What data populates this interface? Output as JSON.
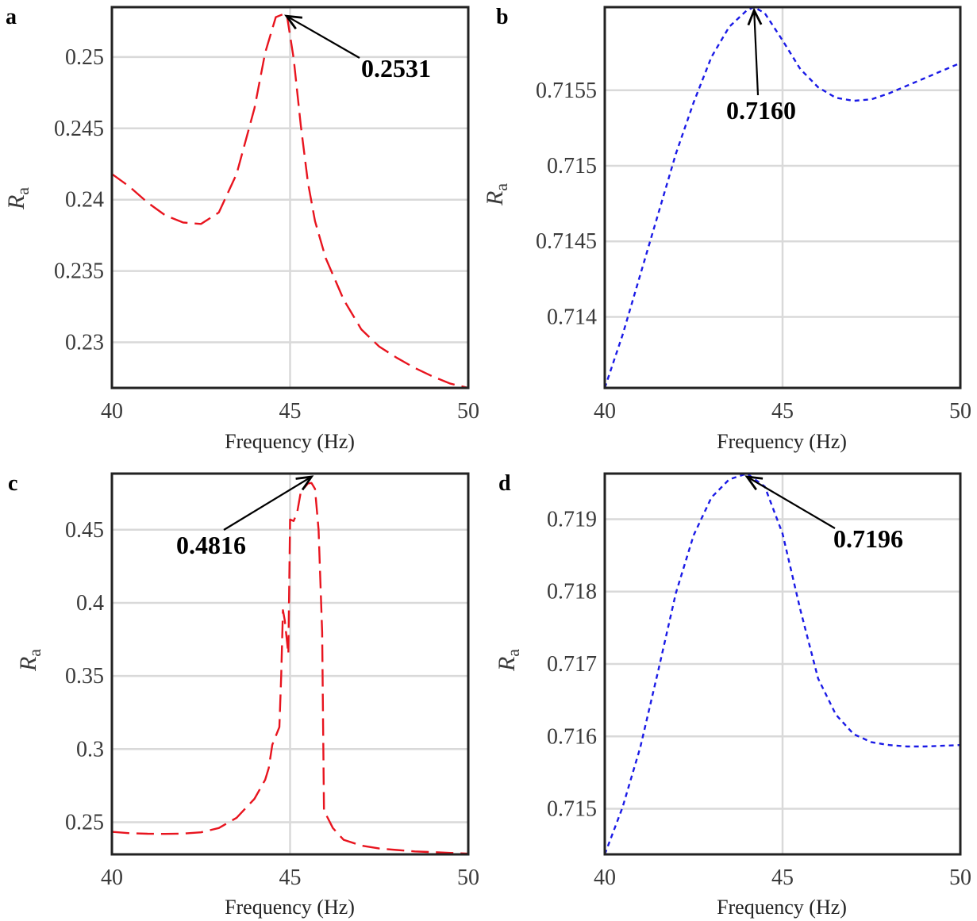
{
  "chart_data": [
    {
      "panel": "a",
      "type": "line",
      "xlabel": "Frequency (Hz)",
      "ylabel": "R",
      "ylabel_sub": "a",
      "xlim": [
        40,
        50
      ],
      "ylim": [
        0.2268,
        0.2535
      ],
      "xticks": [
        40,
        45,
        50
      ],
      "xtick_labels": [
        "40",
        "45",
        "50"
      ],
      "yticks": [
        0.23,
        0.235,
        0.24,
        0.245,
        0.25
      ],
      "ytick_labels": [
        "0.23",
        "0.235",
        "0.24",
        "0.245",
        "0.25"
      ],
      "grid": true,
      "series": [
        {
          "color": "#e8141e",
          "dash": "long-dash",
          "x": [
            40,
            40.5,
            41,
            41.5,
            42,
            42.5,
            43,
            43.5,
            44,
            44.3,
            44.6,
            44.9,
            45.1,
            45.3,
            45.5,
            45.7,
            46,
            46.5,
            47,
            47.5,
            48,
            48.5,
            49,
            49.5,
            50
          ],
          "y": [
            0.2418,
            0.2409,
            0.2398,
            0.2389,
            0.2384,
            0.2383,
            0.2391,
            0.2418,
            0.2464,
            0.2503,
            0.2528,
            0.2531,
            0.2499,
            0.2452,
            0.2412,
            0.2385,
            0.2359,
            0.233,
            0.2309,
            0.2297,
            0.2289,
            0.2282,
            0.2276,
            0.2271,
            0.2268
          ]
        }
      ],
      "annotation": {
        "text": "0.2531",
        "x": 44.9,
        "y": 0.2531
      }
    },
    {
      "panel": "b",
      "type": "line",
      "xlabel": "Frequency (Hz)",
      "ylabel": "R",
      "ylabel_sub": "a",
      "xlim": [
        40,
        50
      ],
      "ylim": [
        0.71353,
        0.71605
      ],
      "xticks": [
        40,
        45,
        50
      ],
      "xtick_labels": [
        "40",
        "45",
        "50"
      ],
      "yticks": [
        0.714,
        0.7145,
        0.715,
        0.7155
      ],
      "ytick_labels": [
        "0.714",
        "0.7145",
        "0.715",
        "0.7155"
      ],
      "grid": true,
      "series": [
        {
          "color": "#1a1ae6",
          "dash": "short-dash",
          "x": [
            40,
            40.5,
            41,
            41.5,
            42,
            42.5,
            43,
            43.5,
            44,
            44.2,
            44.5,
            45,
            45.5,
            46,
            46.5,
            47,
            47.5,
            48,
            48.5,
            49,
            49.5,
            50
          ],
          "y": [
            0.71353,
            0.71388,
            0.71428,
            0.71468,
            0.71508,
            0.71542,
            0.71572,
            0.71592,
            0.71603,
            0.71605,
            0.71601,
            0.71583,
            0.71564,
            0.71552,
            0.71545,
            0.71543,
            0.71544,
            0.71548,
            0.71553,
            0.71558,
            0.71563,
            0.71568
          ]
        }
      ],
      "annotation": {
        "text": "0.7160",
        "x": 44.2,
        "y": 0.71605
      }
    },
    {
      "panel": "c",
      "type": "line",
      "xlabel": "Frequency (Hz)",
      "ylabel": "R",
      "ylabel_sub": "a",
      "xlim": [
        40,
        50
      ],
      "ylim": [
        0.228,
        0.4884
      ],
      "xticks": [
        40,
        45,
        50
      ],
      "xtick_labels": [
        "40",
        "45",
        "50"
      ],
      "yticks": [
        0.25,
        0.3,
        0.35,
        0.4,
        0.45
      ],
      "ytick_labels": [
        "0.25",
        "0.3",
        "0.35",
        "0.4",
        "0.45"
      ],
      "grid": true,
      "series": [
        {
          "color": "#e8141e",
          "dash": "long-dash",
          "x": [
            40,
            40.5,
            41,
            41.5,
            42,
            42.5,
            43,
            43.5,
            44,
            44.3,
            44.4,
            44.5,
            44.7,
            44.75,
            44.8,
            44.85,
            44.95,
            45,
            45.1,
            45.2,
            45.3,
            45.5,
            45.6,
            45.7,
            45.8,
            45.9,
            45.95,
            46.2,
            46.5,
            47,
            47.5,
            48,
            48.5,
            49,
            49.5,
            50
          ],
          "y": [
            0.2434,
            0.2425,
            0.2421,
            0.242,
            0.2422,
            0.2431,
            0.246,
            0.253,
            0.266,
            0.279,
            0.287,
            0.303,
            0.315,
            0.35,
            0.395,
            0.388,
            0.365,
            0.457,
            0.456,
            0.462,
            0.476,
            0.4816,
            0.482,
            0.478,
            0.45,
            0.38,
            0.258,
            0.246,
            0.238,
            0.234,
            0.232,
            0.231,
            0.23,
            0.2295,
            0.229,
            0.2285
          ]
        }
      ],
      "annotation": {
        "text": "0.4816",
        "x": 45.6,
        "y": 0.4884
      }
    },
    {
      "panel": "d",
      "type": "line",
      "xlabel": "Frequency (Hz)",
      "ylabel": "R",
      "ylabel_sub": "a",
      "xlim": [
        40,
        50
      ],
      "ylim": [
        0.71437,
        0.71963
      ],
      "xticks": [
        40,
        45,
        50
      ],
      "xtick_labels": [
        "40",
        "45",
        "50"
      ],
      "yticks": [
        0.715,
        0.716,
        0.717,
        0.718,
        0.719
      ],
      "ytick_labels": [
        "0.715",
        "0.716",
        "0.717",
        "0.718",
        "0.719"
      ],
      "grid": true,
      "series": [
        {
          "color": "#1a1ae6",
          "dash": "short-dash",
          "x": [
            40,
            40.5,
            41,
            41.5,
            42,
            42.5,
            43,
            43.5,
            44,
            44.5,
            45,
            45.5,
            46,
            46.5,
            47,
            47.5,
            48,
            48.5,
            49,
            49.5,
            50
          ],
          "y": [
            0.71437,
            0.71502,
            0.71585,
            0.7169,
            0.71798,
            0.71878,
            0.7193,
            0.71955,
            0.71963,
            0.71945,
            0.7188,
            0.71775,
            0.7168,
            0.7163,
            0.71603,
            0.71592,
            0.71588,
            0.71586,
            0.71586,
            0.71587,
            0.71588
          ]
        }
      ],
      "annotation": {
        "text": "0.7196",
        "x": 44,
        "y": 0.71963
      }
    }
  ]
}
